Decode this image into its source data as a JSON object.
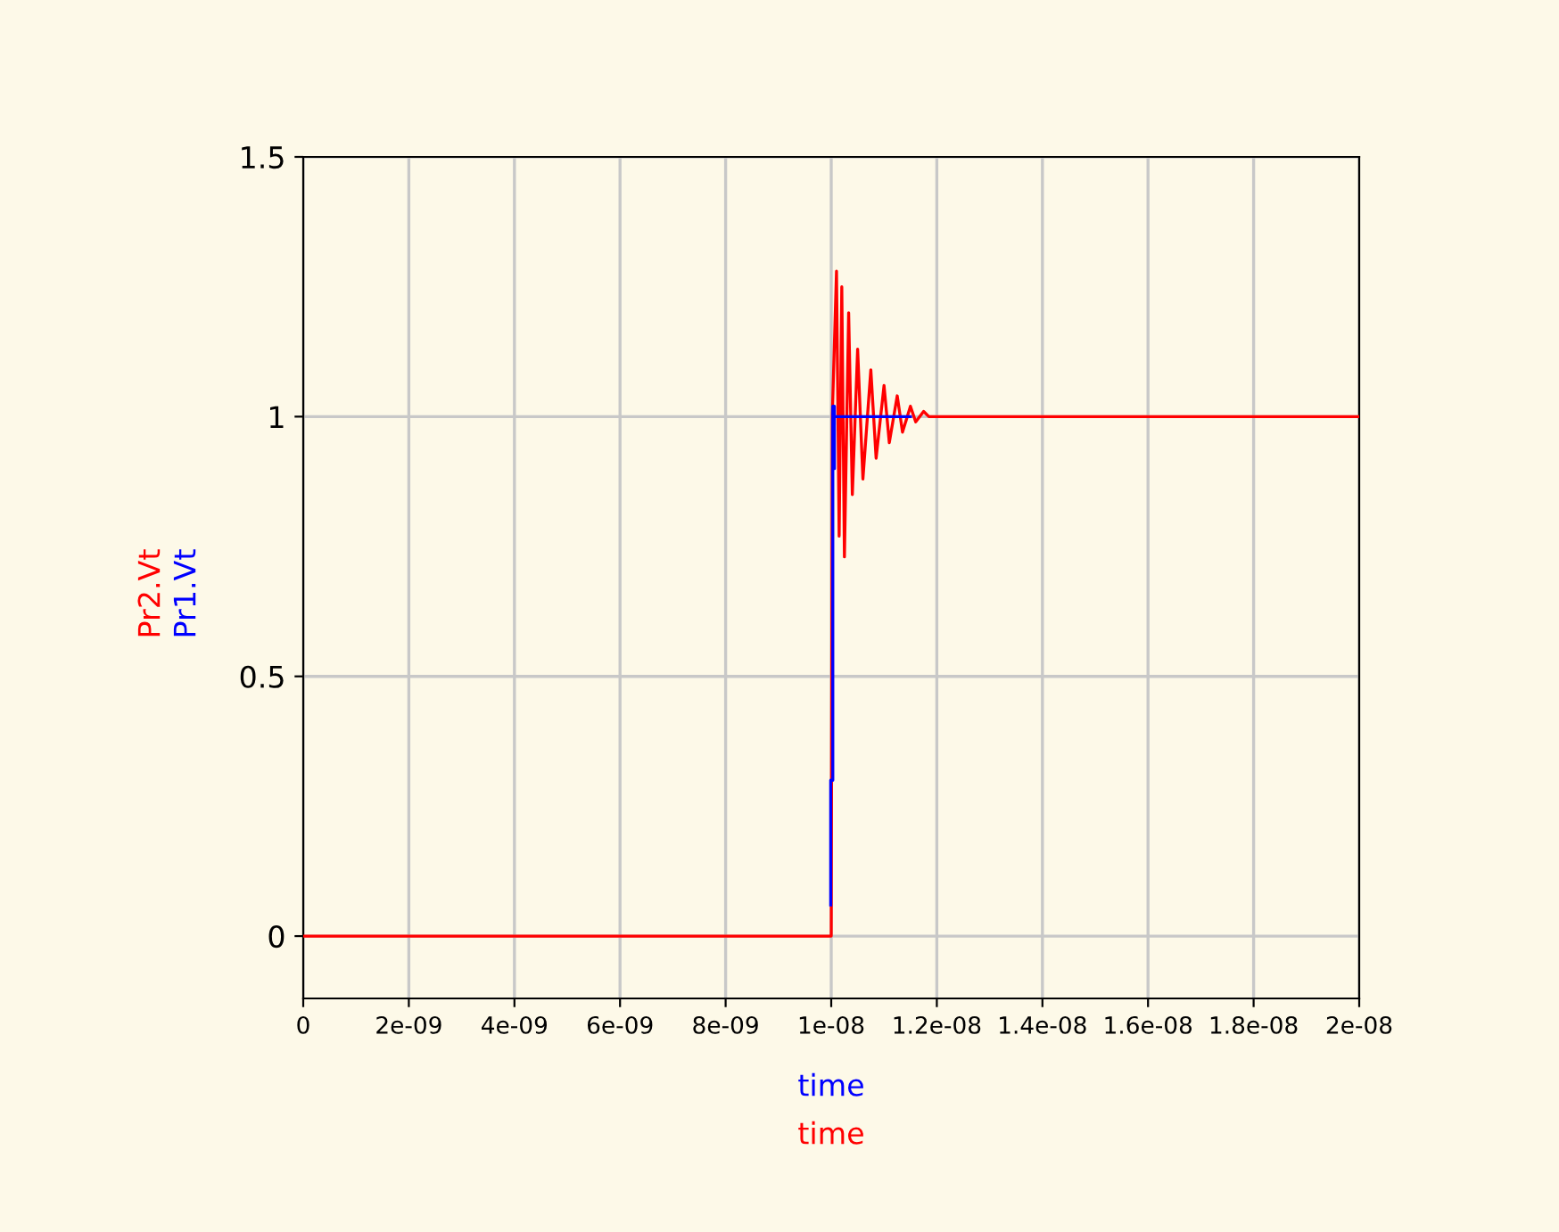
{
  "chart_data": {
    "type": "line",
    "xlabel": "time",
    "series": [
      {
        "name": "Pr1.Vt",
        "color": "#0000ff",
        "x": [
          9.99e-09,
          9.99e-09,
          1.003e-08,
          1.003e-08,
          1.006e-08,
          1.006e-08,
          1.006e-08,
          1.15e-08
        ],
        "values": [
          0.06,
          0.3,
          0.3,
          1.02,
          1.02,
          0.9,
          1.0,
          1.0
        ]
      },
      {
        "name": "Pr2.Vt",
        "color": "#ff0000",
        "x": [
          0,
          1e-08,
          1.002e-08,
          1.01e-08,
          1.015e-08,
          1.02e-08,
          1.025e-08,
          1.033e-08,
          1.04e-08,
          1.05e-08,
          1.06e-08,
          1.075e-08,
          1.085e-08,
          1.1e-08,
          1.11e-08,
          1.125e-08,
          1.135e-08,
          1.15e-08,
          1.16e-08,
          1.175e-08,
          1.185e-08,
          2e-08
        ],
        "values": [
          0,
          0,
          1.0,
          1.28,
          0.77,
          1.25,
          0.73,
          1.2,
          0.85,
          1.13,
          0.88,
          1.09,
          0.92,
          1.06,
          0.95,
          1.04,
          0.97,
          1.02,
          0.99,
          1.01,
          1.0,
          1.0
        ]
      }
    ],
    "xlim": [
      0,
      2e-08
    ],
    "ylim": [
      -0.12,
      1.5
    ],
    "xticks": [
      0,
      {
        "value": 2e-09,
        "label": "2e-09"
      },
      {
        "value": 4e-09,
        "label": "4e-09"
      },
      {
        "value": 6e-09,
        "label": "6e-09"
      },
      {
        "value": 8e-09,
        "label": "8e-09"
      },
      {
        "value": 1e-08,
        "label": "1e-08"
      },
      {
        "value": 1.2e-08,
        "label": "1.2e-08"
      },
      {
        "value": 1.4e-08,
        "label": "1.4e-08"
      },
      {
        "value": 1.6e-08,
        "label": "1.6e-08"
      },
      {
        "value": 1.8e-08,
        "label": "1.8e-08"
      },
      {
        "value": 2e-08,
        "label": "2e-08"
      }
    ],
    "yticks": [
      0,
      0.5,
      1,
      1.5
    ],
    "grid": true,
    "legend": false,
    "marker": "none",
    "line_style": "solid"
  }
}
